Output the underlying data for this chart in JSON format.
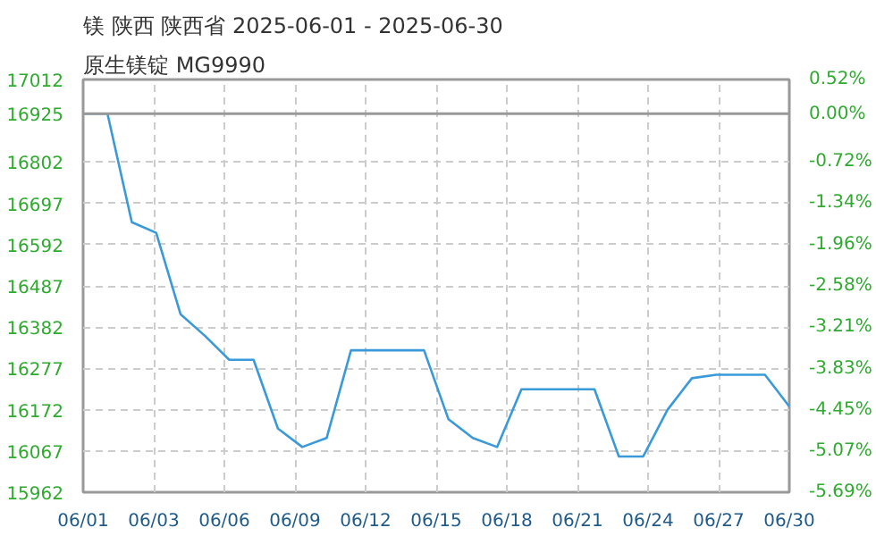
{
  "chart_data": {
    "type": "line",
    "title": "镁 陕西 陕西省 2025-06-01 - 2025-06-30",
    "subtitle": "原生镁锭 MG9990",
    "x": [
      "2025-06-01",
      "2025-06-02",
      "2025-06-03",
      "2025-06-04",
      "2025-06-05",
      "2025-06-06",
      "2025-06-07",
      "2025-06-08",
      "2025-06-09",
      "2025-06-10",
      "2025-06-11",
      "2025-06-12",
      "2025-06-13",
      "2025-06-14",
      "2025-06-15",
      "2025-06-16",
      "2025-06-17",
      "2025-06-18",
      "2025-06-19",
      "2025-06-20",
      "2025-06-21",
      "2025-06-22",
      "2025-06-23",
      "2025-06-24",
      "2025-06-25",
      "2025-06-26",
      "2025-06-27",
      "2025-06-28",
      "2025-06-29",
      "2025-06-30"
    ],
    "series": [
      {
        "color": "#3a9ad9",
        "values": [
          16925,
          16925,
          16649,
          16622,
          16415,
          16360,
          16299,
          16299,
          16124,
          16077,
          16100,
          16323,
          16323,
          16323,
          16323,
          16148,
          16100,
          16077,
          16224,
          16224,
          16224,
          16224,
          16053,
          16053,
          16172,
          16252,
          16261,
          16261,
          16261,
          16180
        ]
      }
    ],
    "xlim": [
      "2025-06-01",
      "2025-06-30"
    ],
    "xticks": [
      {
        "value": "2025-06-01",
        "label": "06/01"
      },
      {
        "value": "2025-06-03T21:36",
        "label": "06/03"
      },
      {
        "value": "2025-06-06T19:12",
        "label": "06/06"
      },
      {
        "value": "2025-06-09T16:48",
        "label": "06/09"
      },
      {
        "value": "2025-06-12T14:24",
        "label": "06/12"
      },
      {
        "value": "2025-06-15T12:00",
        "label": "06/15"
      },
      {
        "value": "2025-06-18T09:36",
        "label": "06/18"
      },
      {
        "value": "2025-06-21T07:12",
        "label": "06/21"
      },
      {
        "value": "2025-06-24T04:48",
        "label": "06/24"
      },
      {
        "value": "2025-06-27T02:24",
        "label": "06/27"
      },
      {
        "value": "2025-06-30",
        "label": "06/30"
      }
    ],
    "ylim": [
      15962,
      17012
    ],
    "yticks": [
      15962,
      16067,
      16172,
      16277,
      16382,
      16487,
      16592,
      16697,
      16802,
      16925,
      17012
    ],
    "y2lim": [
      -5.69,
      0.52
    ],
    "y2ticks": [
      {
        "value": -5.69,
        "label": "-5.69%"
      },
      {
        "value": -5.07,
        "label": "-5.07%"
      },
      {
        "value": -4.45,
        "label": "-4.45%"
      },
      {
        "value": -3.83,
        "label": "-3.83%"
      },
      {
        "value": -3.21,
        "label": "-3.21%"
      },
      {
        "value": -2.58,
        "label": "-2.58%"
      },
      {
        "value": -1.96,
        "label": "-1.96%"
      },
      {
        "value": -1.34,
        "label": "-1.34%"
      },
      {
        "value": -0.72,
        "label": "-0.72%"
      },
      {
        "value": 0,
        "label": "0.00%"
      },
      {
        "value": 0.52,
        "label": "0.52%"
      }
    ],
    "ref_lines": [
      {
        "axis": "y",
        "value": 16925,
        "color": "#999999",
        "line_style": "solid"
      }
    ],
    "grid": true,
    "marker": "none",
    "line_style": "solid"
  }
}
